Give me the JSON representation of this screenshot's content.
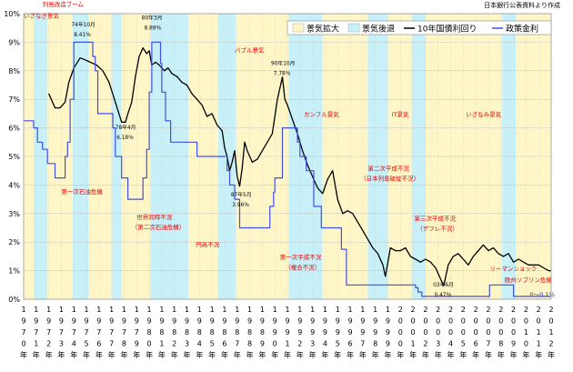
{
  "source_note": "日本銀行公表資料より作成",
  "chart_data": {
    "type": "line",
    "title": "",
    "xlabel": "",
    "ylabel": "",
    "ylim": [
      0,
      10
    ],
    "xlim": [
      1970,
      2012
    ],
    "y_ticks": [
      "0%",
      "1%",
      "2%",
      "3%",
      "4%",
      "5%",
      "6%",
      "7%",
      "8%",
      "9%",
      "10%"
    ],
    "x_ticks": [
      {
        "year": 1970,
        "label": "1970年"
      },
      {
        "year": 1971,
        "label": "1971年"
      },
      {
        "year": 1972,
        "label": "1972年"
      },
      {
        "year": 1973,
        "label": "1973年"
      },
      {
        "year": 1974,
        "label": "1974年"
      },
      {
        "year": 1975,
        "label": "1975年"
      },
      {
        "year": 1976,
        "label": "1976年"
      },
      {
        "year": 1977,
        "label": "1977年"
      },
      {
        "year": 1978,
        "label": "1978年"
      },
      {
        "year": 1979,
        "label": "1979年"
      },
      {
        "year": 1980,
        "label": "1980年"
      },
      {
        "year": 1981,
        "label": "1981年"
      },
      {
        "year": 1982,
        "label": "1982年"
      },
      {
        "year": 1983,
        "label": "1983年"
      },
      {
        "year": 1984,
        "label": "1984年"
      },
      {
        "year": 1985,
        "label": "1985年"
      },
      {
        "year": 1986,
        "label": "1986年"
      },
      {
        "year": 1987,
        "label": "1987年"
      },
      {
        "year": 1988,
        "label": "1988年"
      },
      {
        "year": 1989,
        "label": "1989年"
      },
      {
        "year": 1990,
        "label": "1990年"
      },
      {
        "year": 1991,
        "label": "1991年"
      },
      {
        "year": 1992,
        "label": "1992年"
      },
      {
        "year": 1993,
        "label": "1993年"
      },
      {
        "year": 1994,
        "label": "1994年"
      },
      {
        "year": 1995,
        "label": "1995年"
      },
      {
        "year": 1996,
        "label": "1996年"
      },
      {
        "year": 1997,
        "label": "1997年"
      },
      {
        "year": 1998,
        "label": "1998年"
      },
      {
        "year": 1999,
        "label": "1999年"
      },
      {
        "year": 2000,
        "label": "2000年"
      },
      {
        "year": 2001,
        "label": "2001年"
      },
      {
        "year": 2002,
        "label": "2002年"
      },
      {
        "year": 2003,
        "label": "2003年"
      },
      {
        "year": 2004,
        "label": "2004年"
      },
      {
        "year": 2005,
        "label": "2005年"
      },
      {
        "year": 2006,
        "label": "2006年"
      },
      {
        "year": 2007,
        "label": "2007年"
      },
      {
        "year": 2008,
        "label": "2008年"
      },
      {
        "year": 2009,
        "label": "2009年"
      },
      {
        "year": 2010,
        "label": "2010年"
      },
      {
        "year": 2011,
        "label": "2011年"
      },
      {
        "year": 2012,
        "label": "2012年"
      }
    ],
    "grid": true,
    "legend_position": "top-right",
    "legend": [
      {
        "label": "景気拡大",
        "kind": "band",
        "color": "#fff6c8"
      },
      {
        "label": "景気後退",
        "kind": "band",
        "color": "#c8f0f8"
      },
      {
        "label": "10年国債利回り",
        "kind": "line",
        "color": "#000000"
      },
      {
        "label": "政策金利",
        "kind": "line",
        "color": "#4050e0"
      }
    ],
    "bands": [
      {
        "start": 1970.0,
        "end": 1970.8,
        "phase": "expansion"
      },
      {
        "start": 1970.8,
        "end": 1971.9,
        "phase": "contraction"
      },
      {
        "start": 1971.9,
        "end": 1973.9,
        "phase": "expansion"
      },
      {
        "start": 1973.9,
        "end": 1975.2,
        "phase": "contraction"
      },
      {
        "start": 1975.2,
        "end": 1977.0,
        "phase": "expansion"
      },
      {
        "start": 1977.0,
        "end": 1977.8,
        "phase": "contraction"
      },
      {
        "start": 1977.8,
        "end": 1980.1,
        "phase": "expansion"
      },
      {
        "start": 1980.1,
        "end": 1983.1,
        "phase": "contraction"
      },
      {
        "start": 1983.1,
        "end": 1985.5,
        "phase": "expansion"
      },
      {
        "start": 1985.5,
        "end": 1986.9,
        "phase": "contraction"
      },
      {
        "start": 1986.9,
        "end": 1991.1,
        "phase": "expansion"
      },
      {
        "start": 1991.1,
        "end": 1993.8,
        "phase": "contraction"
      },
      {
        "start": 1993.8,
        "end": 1997.4,
        "phase": "expansion"
      },
      {
        "start": 1997.4,
        "end": 1999.0,
        "phase": "contraction"
      },
      {
        "start": 1999.0,
        "end": 2000.9,
        "phase": "expansion"
      },
      {
        "start": 2000.9,
        "end": 2002.0,
        "phase": "contraction"
      },
      {
        "start": 2002.0,
        "end": 2008.1,
        "phase": "expansion"
      },
      {
        "start": 2008.1,
        "end": 2009.2,
        "phase": "contraction"
      },
      {
        "start": 2009.2,
        "end": 2012.0,
        "phase": "expansion"
      }
    ],
    "series": [
      {
        "name": "10年国債利回り",
        "color": "#000000",
        "x": [
          1972.0,
          1972.2,
          1972.5,
          1972.9,
          1973.3,
          1973.6,
          1974.0,
          1974.5,
          1974.8,
          1975.3,
          1975.8,
          1976.3,
          1976.8,
          1977.3,
          1977.8,
          1978.1,
          1978.3,
          1978.6,
          1978.9,
          1979.2,
          1979.5,
          1979.8,
          1980.0,
          1980.2,
          1980.5,
          1980.8,
          1981.2,
          1981.5,
          1981.8,
          1982.2,
          1982.6,
          1983.0,
          1983.4,
          1983.8,
          1984.2,
          1984.6,
          1985.0,
          1985.4,
          1985.8,
          1986.0,
          1986.2,
          1986.4,
          1986.6,
          1986.8,
          1987.0,
          1987.2,
          1987.4,
          1987.6,
          1987.8,
          1988.2,
          1988.6,
          1989.0,
          1989.4,
          1989.8,
          1990.2,
          1990.6,
          1990.8,
          1991.0,
          1991.4,
          1991.8,
          1992.2,
          1992.6,
          1993.0,
          1993.4,
          1993.8,
          1994.2,
          1994.6,
          1995.0,
          1995.4,
          1995.8,
          1996.2,
          1996.6,
          1997.0,
          1997.4,
          1997.8,
          1998.2,
          1998.6,
          1998.8,
          1999.0,
          1999.2,
          1999.6,
          2000.0,
          2000.4,
          2000.8,
          2001.2,
          2001.6,
          2002.0,
          2002.4,
          2002.8,
          2003.2,
          2003.45,
          2003.8,
          2004.2,
          2004.6,
          2005.0,
          2005.4,
          2005.8,
          2006.2,
          2006.6,
          2007.0,
          2007.4,
          2007.8,
          2008.2,
          2008.6,
          2009.0,
          2009.4,
          2009.8,
          2010.2,
          2010.6,
          2011.0,
          2011.4,
          2011.8,
          2012.0
        ],
        "values": [
          7.2,
          7.0,
          6.7,
          6.7,
          6.9,
          7.6,
          8.1,
          8.45,
          8.4,
          8.3,
          8.2,
          8.0,
          7.6,
          6.9,
          6.2,
          6.2,
          6.5,
          6.9,
          7.8,
          8.5,
          8.8,
          8.6,
          8.7,
          8.2,
          8.3,
          8.2,
          8.0,
          8.1,
          7.9,
          7.8,
          7.6,
          7.5,
          7.2,
          7.0,
          6.8,
          6.4,
          6.5,
          6.1,
          5.9,
          5.3,
          5.0,
          4.5,
          4.8,
          5.2,
          4.3,
          3.96,
          4.6,
          5.5,
          5.2,
          4.8,
          4.9,
          5.2,
          5.5,
          5.8,
          7.0,
          7.78,
          7.0,
          6.8,
          6.3,
          5.8,
          5.2,
          4.7,
          4.3,
          3.9,
          3.7,
          4.2,
          4.5,
          3.5,
          3.0,
          3.1,
          3.0,
          2.7,
          2.4,
          2.1,
          1.8,
          1.6,
          1.2,
          0.8,
          1.3,
          1.8,
          1.7,
          1.7,
          1.8,
          1.5,
          1.4,
          1.3,
          1.4,
          1.3,
          1.1,
          0.7,
          0.47,
          1.2,
          1.5,
          1.6,
          1.4,
          1.2,
          1.5,
          1.7,
          1.9,
          1.7,
          1.8,
          1.6,
          1.5,
          1.6,
          1.3,
          1.4,
          1.3,
          1.2,
          1.2,
          1.2,
          1.1,
          1.0,
          1.0
        ]
      },
      {
        "name": "政策金利",
        "color": "#4050e0",
        "x": [
          1970.0,
          1970.6,
          1970.8,
          1971.1,
          1971.5,
          1971.9,
          1972.5,
          1973.0,
          1973.3,
          1973.5,
          1973.7,
          1974.0,
          1975.3,
          1975.5,
          1975.7,
          1975.9,
          1976.9,
          1977.1,
          1977.3,
          1977.8,
          1978.3,
          1979.2,
          1979.5,
          1979.8,
          1980.0,
          1980.2,
          1980.6,
          1980.9,
          1981.0,
          1981.3,
          1981.7,
          1983.8,
          1986.0,
          1986.2,
          1986.4,
          1986.8,
          1987.2,
          1989.4,
          1989.6,
          1989.9,
          1990.0,
          1990.6,
          1991.5,
          1991.8,
          1992.0,
          1992.5,
          1993.1,
          1993.7,
          1995.3,
          1995.7,
          2001.0,
          2001.2,
          2001.4,
          2001.7,
          2006.5,
          2007.1,
          2008.8,
          2009.0,
          2012.0
        ],
        "values": [
          6.25,
          6.25,
          6.0,
          5.5,
          5.25,
          4.75,
          4.25,
          4.25,
          5.0,
          5.5,
          7.0,
          9.0,
          9.0,
          8.5,
          8.0,
          6.5,
          6.5,
          6.0,
          5.0,
          4.25,
          3.5,
          3.5,
          4.25,
          5.25,
          7.25,
          9.0,
          9.0,
          8.25,
          7.25,
          6.25,
          5.5,
          5.0,
          5.0,
          4.5,
          4.0,
          3.5,
          2.5,
          2.5,
          3.25,
          3.75,
          4.25,
          6.0,
          6.0,
          5.5,
          5.0,
          4.5,
          3.25,
          2.5,
          1.75,
          0.5,
          0.5,
          0.4,
          0.25,
          0.1,
          0.1,
          0.5,
          0.5,
          0.1,
          0.1
        ]
      }
    ],
    "annotations": [
      {
        "text": "いざなぎ景気",
        "x": 1970.0,
        "y": 9.85,
        "color": "red"
      },
      {
        "text": "列島改造ブーム",
        "x": 1971.5,
        "y": 10.25,
        "color": "red"
      },
      {
        "text": "74年10月",
        "x": 1973.8,
        "y": 9.55,
        "color": "black"
      },
      {
        "text": "8.41％",
        "x": 1974.0,
        "y": 9.2,
        "color": "black"
      },
      {
        "text": "80年3月",
        "x": 1979.4,
        "y": 9.8,
        "color": "black"
      },
      {
        "text": "8.89％",
        "x": 1979.6,
        "y": 9.45,
        "color": "black"
      },
      {
        "text": "バブル景気",
        "x": 1986.8,
        "y": 8.65,
        "color": "red"
      },
      {
        "text": "90年10月",
        "x": 1989.7,
        "y": 8.2,
        "color": "black"
      },
      {
        "text": "7.78％",
        "x": 1989.9,
        "y": 7.85,
        "color": "black"
      },
      {
        "text": "78年4月",
        "x": 1977.3,
        "y": 5.95,
        "color": "black"
      },
      {
        "text": "6.18％",
        "x": 1977.4,
        "y": 5.6,
        "color": "black"
      },
      {
        "text": "カンフル景気",
        "x": 1992.3,
        "y": 6.4,
        "color": "red"
      },
      {
        "text": "IT景気",
        "x": 1999.3,
        "y": 6.4,
        "color": "red"
      },
      {
        "text": "いざなみ景気",
        "x": 2005.2,
        "y": 6.4,
        "color": "red"
      },
      {
        "text": "第一次石油危機",
        "x": 1973.0,
        "y": 3.7,
        "color": "red"
      },
      {
        "text": "87年5月",
        "x": 1986.5,
        "y": 3.6,
        "color": "black"
      },
      {
        "text": "3.96％",
        "x": 1986.6,
        "y": 3.25,
        "color": "black"
      },
      {
        "text": "世界同時不況",
        "x": 1979.0,
        "y": 2.8,
        "color": "red"
      },
      {
        "text": "（第二次石油危機）",
        "x": 1978.6,
        "y": 2.45,
        "color": "red"
      },
      {
        "text": "第二次平成不況",
        "x": 1997.4,
        "y": 4.5,
        "color": "red"
      },
      {
        "text": "（日本列島破綻不況）",
        "x": 1996.8,
        "y": 4.15,
        "color": "red"
      },
      {
        "text": "第三次平成不況",
        "x": 2001.1,
        "y": 2.75,
        "color": "red"
      },
      {
        "text": "（デフレ不況）",
        "x": 2001.3,
        "y": 2.4,
        "color": "red"
      },
      {
        "text": "円高不況",
        "x": 1983.7,
        "y": 1.85,
        "color": "red"
      },
      {
        "text": "第一次平成不況",
        "x": 1990.4,
        "y": 1.4,
        "color": "red"
      },
      {
        "text": "（複合不況）",
        "x": 1990.8,
        "y": 1.05,
        "color": "red"
      },
      {
        "text": "リーマンショック",
        "x": 2007.1,
        "y": 1.0,
        "color": "red"
      },
      {
        "text": "03年6月",
        "x": 2002.6,
        "y": 0.45,
        "color": "black"
      },
      {
        "text": "0.47％",
        "x": 2002.7,
        "y": 0.1,
        "color": "black"
      },
      {
        "text": "欧州ソブリン危機",
        "x": 2008.3,
        "y": 0.6,
        "color": "red"
      },
      {
        "text": "0～0.1％",
        "x": 2010.3,
        "y": 0.1,
        "color": "blue"
      }
    ]
  }
}
